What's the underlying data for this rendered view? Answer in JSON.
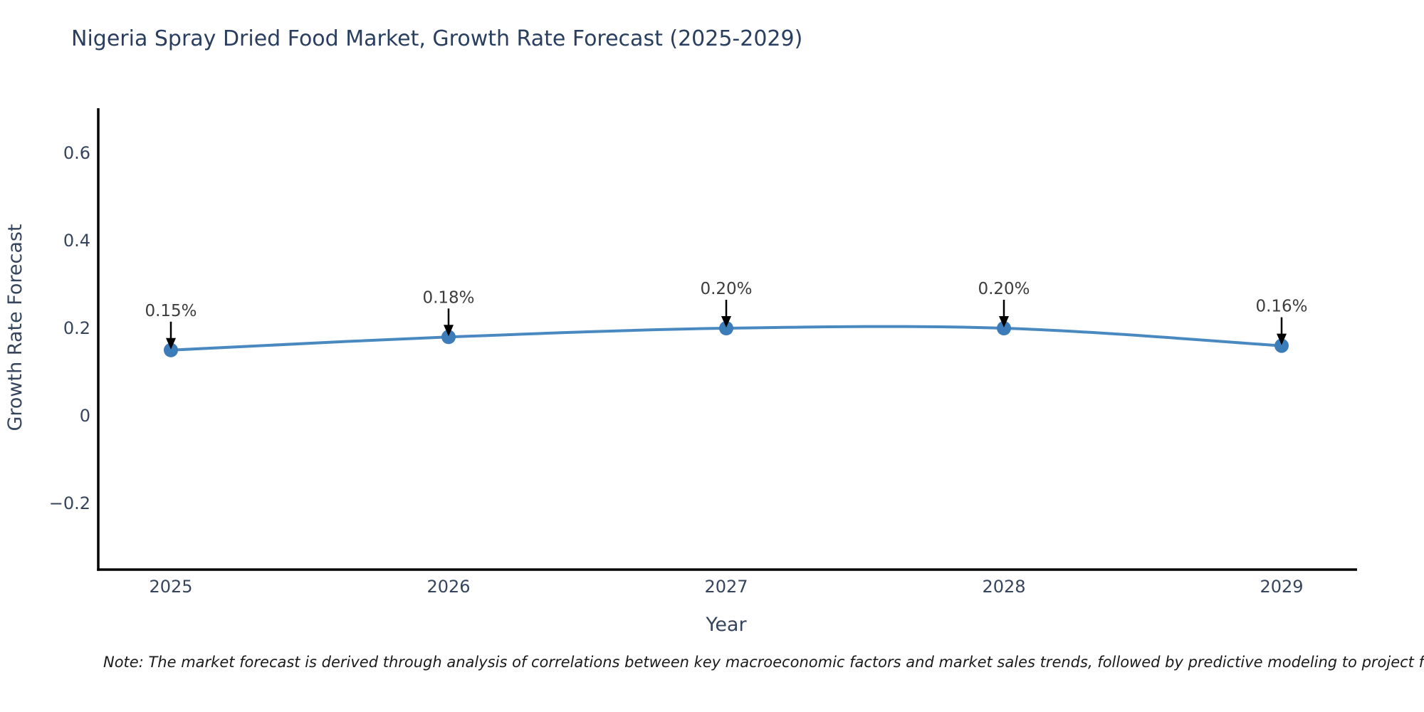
{
  "chart_data": {
    "type": "line",
    "title": "Nigeria Spray Dried Food Market, Growth Rate Forecast (2025-2029)",
    "xlabel": "Year",
    "ylabel": "Growth Rate Forecast",
    "x": [
      2025,
      2026,
      2027,
      2028,
      2029
    ],
    "x_tick_labels": [
      "2025",
      "2026",
      "2027",
      "2028",
      "2029"
    ],
    "series": [
      {
        "name": "Growth Rate Forecast",
        "values": [
          0.15,
          0.18,
          0.2,
          0.2,
          0.16
        ]
      }
    ],
    "point_labels": [
      "0.15%",
      "0.18%",
      "0.20%",
      "0.20%",
      "0.16%"
    ],
    "yticks": [
      -0.2,
      0,
      0.2,
      0.4,
      0.6
    ],
    "ytick_labels": [
      "−0.2",
      "0",
      "0.2",
      "0.4",
      "0.6"
    ],
    "ylim": [
      -0.35,
      0.71
    ],
    "grid": false,
    "legend": "none",
    "colors": {
      "line": "#4a89c0",
      "marker": "#3c7cb8",
      "axis": "#000000",
      "tick_text": "#36455c",
      "axis_label_text": "#36455c",
      "title_text": "#2a3f5f",
      "annotation_text": "#3d3d3d",
      "arrow": "#000000",
      "background": "#ffffff"
    }
  },
  "note": {
    "text": "Note: The market forecast is derived through analysis of correlations between key macroeconomic factors and market sales trends, followed by predictive modeling to project future sa"
  }
}
